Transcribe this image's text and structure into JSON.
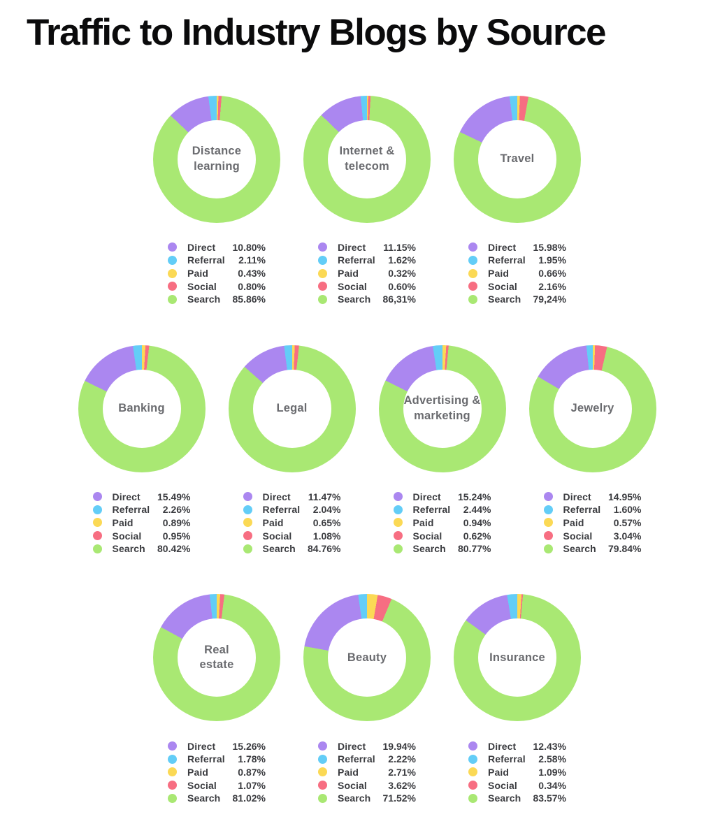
{
  "title": "Traffic to Industry Blogs by Source",
  "chart_data": {
    "type": "pie",
    "subtype": "donut",
    "series_labels": [
      "Direct",
      "Referral",
      "Paid",
      "Social",
      "Search"
    ],
    "colors": {
      "Direct": "#ab87f0",
      "Referral": "#63cdf7",
      "Paid": "#fbd955",
      "Social": "#f76e82",
      "Search": "#a9e873"
    },
    "legend_position": "below",
    "rotation_rule": "segments clockwise in order Direct, Referral, Paid, Social, Search; Paid segment starts at 12 o'clock",
    "layout_rows": [
      [
        0,
        1,
        2
      ],
      [
        3,
        4,
        5,
        6
      ],
      [
        7,
        8,
        9
      ]
    ],
    "charts": [
      {
        "name": "Distance learning",
        "center_label": "Distance\nlearning",
        "values": [
          10.8,
          2.11,
          0.43,
          0.8,
          85.86
        ],
        "display": [
          "10.80%",
          "2.11%",
          "0.43%",
          "0.80%",
          "85.86%"
        ]
      },
      {
        "name": "Internet & telecom",
        "center_label": "Internet &\ntelecom",
        "values": [
          11.15,
          1.62,
          0.32,
          0.6,
          86.31
        ],
        "display": [
          "11.15%",
          "1.62%",
          "0.32%",
          "0.60%",
          "86,31%"
        ]
      },
      {
        "name": "Travel",
        "center_label": "Travel",
        "values": [
          15.98,
          1.95,
          0.66,
          2.16,
          79.24
        ],
        "display": [
          "15.98%",
          "1.95%",
          "0.66%",
          "2.16%",
          "79,24%"
        ]
      },
      {
        "name": "Banking",
        "center_label": "Banking",
        "values": [
          15.49,
          2.26,
          0.89,
          0.95,
          80.42
        ],
        "display": [
          "15.49%",
          "2.26%",
          "0.89%",
          "0.95%",
          "80.42%"
        ]
      },
      {
        "name": "Legal",
        "center_label": "Legal",
        "values": [
          11.47,
          2.04,
          0.65,
          1.08,
          84.76
        ],
        "display": [
          "11.47%",
          "2.04%",
          "0.65%",
          "1.08%",
          "84.76%"
        ]
      },
      {
        "name": "Advertising & marketing",
        "center_label": "Advertising &\nmarketing",
        "values": [
          15.24,
          2.44,
          0.94,
          0.62,
          80.77
        ],
        "display": [
          "15.24%",
          "2.44%",
          "0.94%",
          "0.62%",
          "80.77%"
        ]
      },
      {
        "name": "Jewelry",
        "center_label": "Jewelry",
        "values": [
          14.95,
          1.6,
          0.57,
          3.04,
          79.84
        ],
        "display": [
          "14.95%",
          "1.60%",
          "0.57%",
          "3.04%",
          "79.84%"
        ]
      },
      {
        "name": "Real estate",
        "center_label": "Real\nestate",
        "values": [
          15.26,
          1.78,
          0.87,
          1.07,
          81.02
        ],
        "display": [
          "15.26%",
          "1.78%",
          "0.87%",
          "1.07%",
          "81.02%"
        ]
      },
      {
        "name": "Beauty",
        "center_label": "Beauty",
        "values": [
          19.94,
          2.22,
          2.71,
          3.62,
          71.52
        ],
        "display": [
          "19.94%",
          "2.22%",
          "2.71%",
          "3.62%",
          "71.52%"
        ]
      },
      {
        "name": "Insurance",
        "center_label": "Insurance",
        "values": [
          12.43,
          2.58,
          1.09,
          0.34,
          83.57
        ],
        "display": [
          "12.43%",
          "2.58%",
          "1.09%",
          "0.34%",
          "83.57%"
        ]
      }
    ]
  }
}
